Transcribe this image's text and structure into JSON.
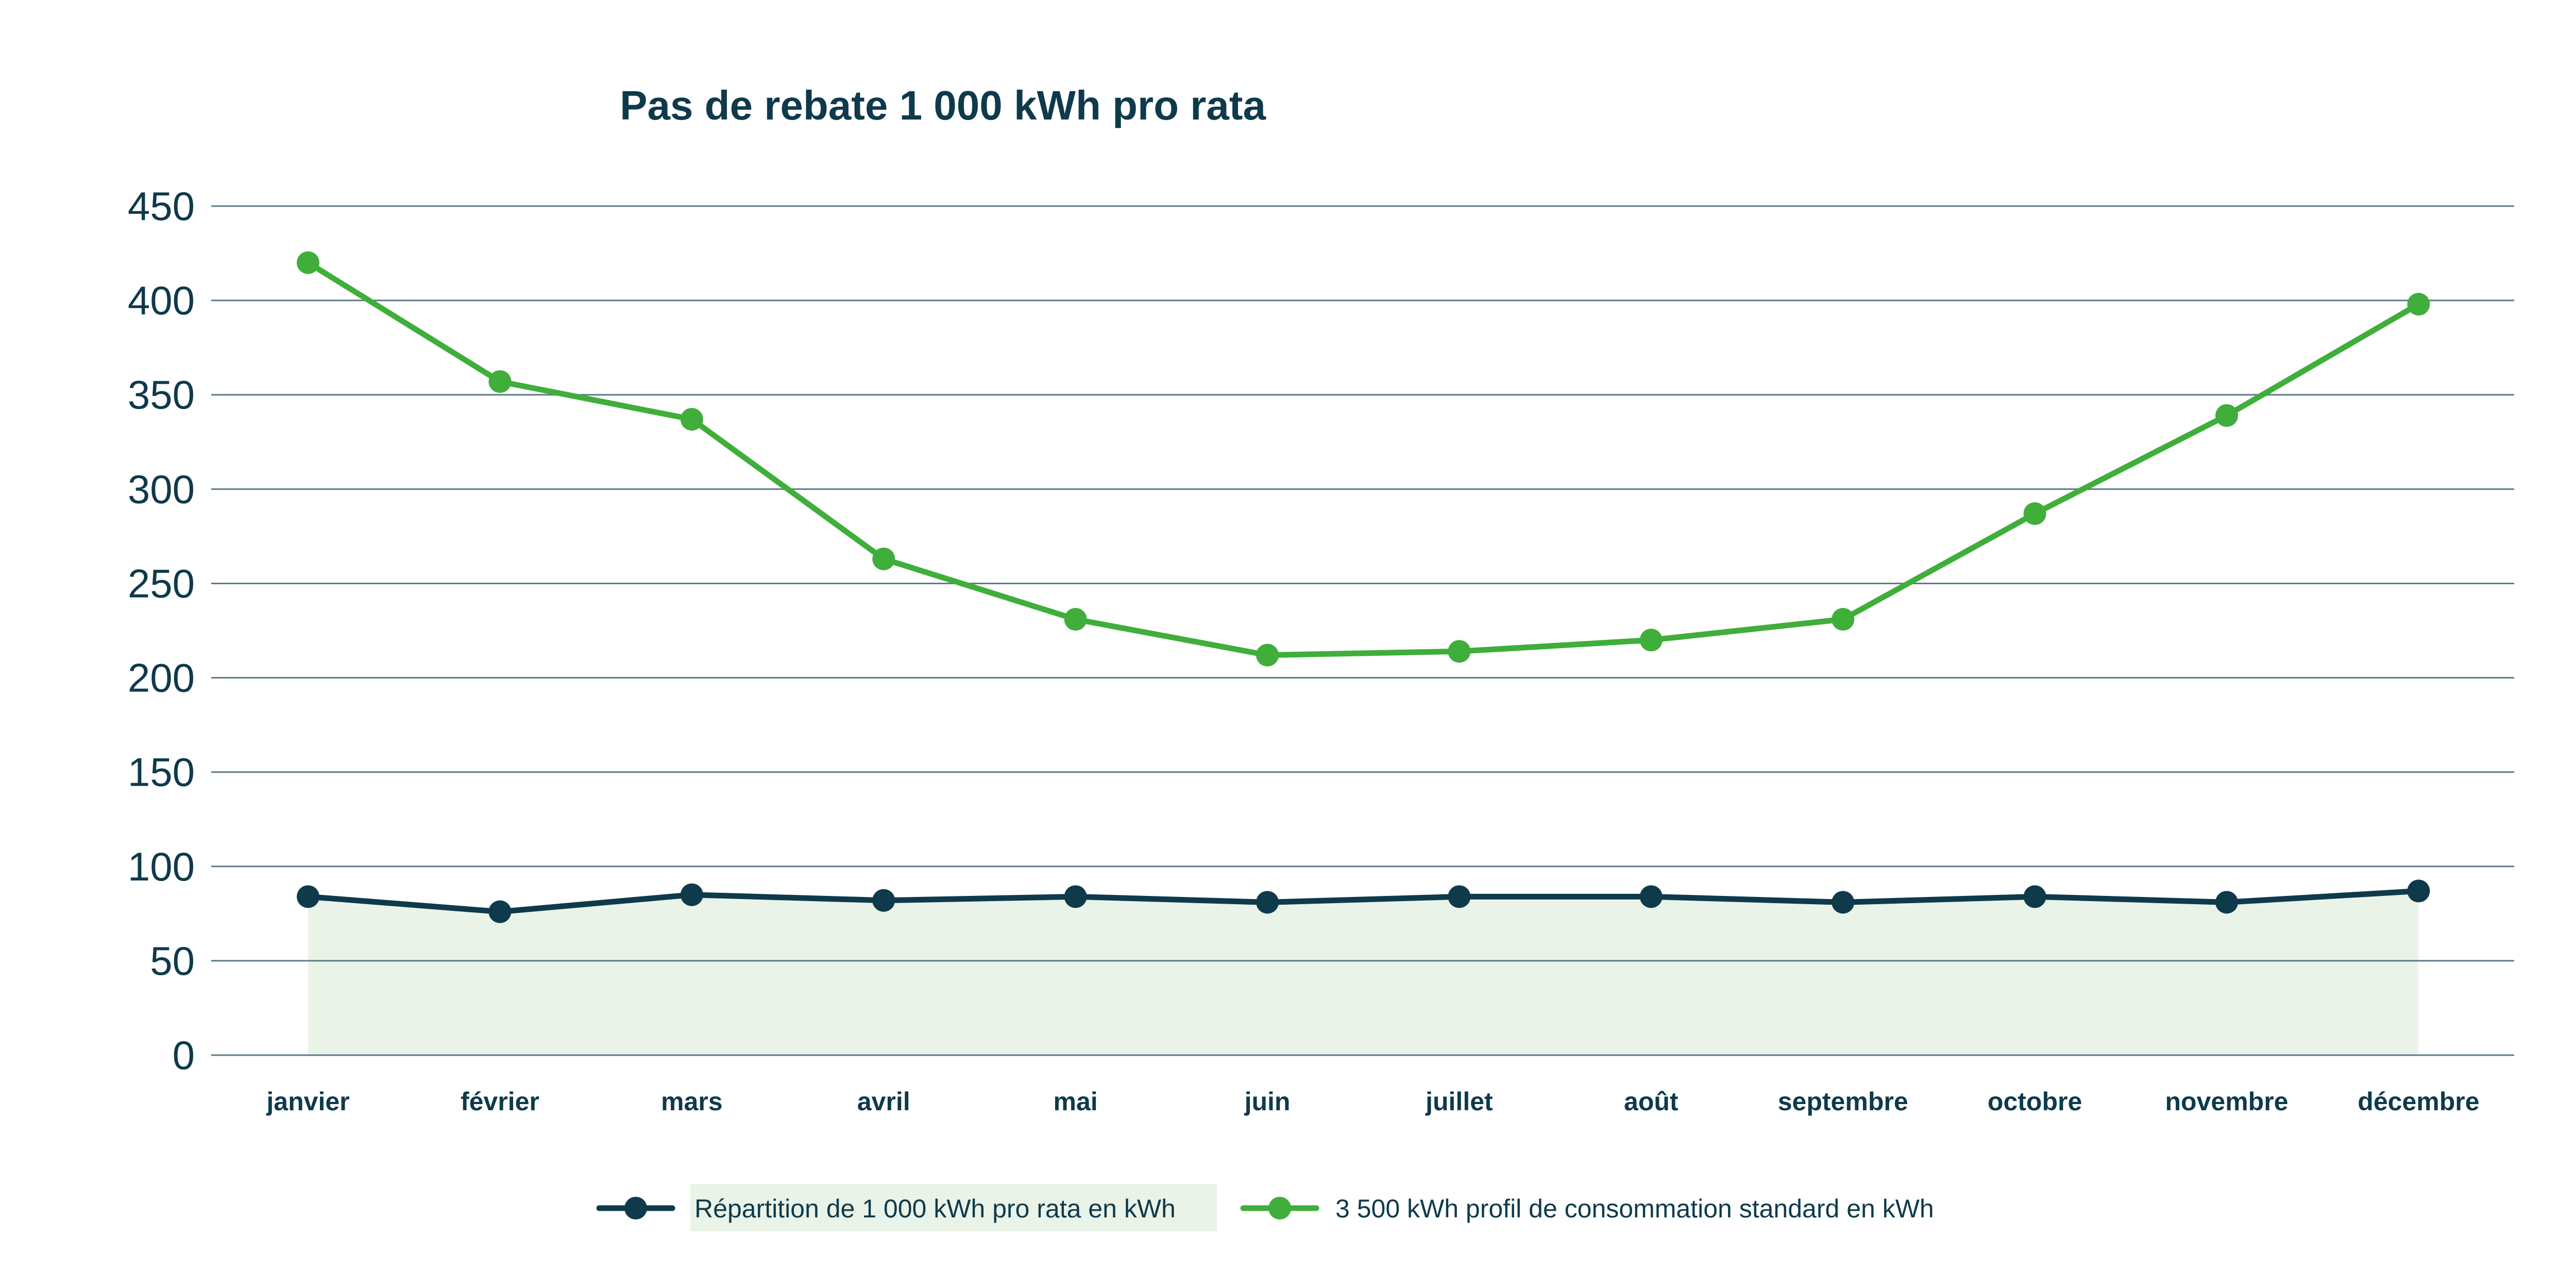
{
  "colors": {
    "navy": "#0e3a4b",
    "green": "#3fae3a",
    "fill": "#eaf3e7",
    "grid": "#5d7a88",
    "text": "#0e3a4b",
    "background": "#ffffff"
  },
  "chart_data": {
    "type": "line",
    "title": "Pas de rebate 1 000 kWh pro rata",
    "xlabel": "",
    "ylabel": "",
    "ylim": [
      0,
      450
    ],
    "yticks": [
      0,
      50,
      100,
      150,
      200,
      250,
      300,
      350,
      400,
      450
    ],
    "grid": true,
    "legend_position": "bottom-center",
    "categories": [
      "janvier",
      "février",
      "mars",
      "avril",
      "mai",
      "juin",
      "juillet",
      "août",
      "septembre",
      "octobre",
      "novembre",
      "décembre"
    ],
    "series": [
      {
        "name": "Répartition de 1 000 kWh pro rata en kWh",
        "color": "#0e3a4b",
        "area_fill": "#eaf3e7",
        "marker": "circle",
        "values": [
          84,
          76,
          85,
          82,
          84,
          81,
          84,
          84,
          81,
          84,
          81,
          87
        ]
      },
      {
        "name": "3 500 kWh profil de consommation standard en kWh",
        "color": "#3fae3a",
        "marker": "circle",
        "values": [
          420,
          357,
          337,
          263,
          231,
          212,
          214,
          220,
          231,
          287,
          339,
          398
        ]
      }
    ]
  }
}
